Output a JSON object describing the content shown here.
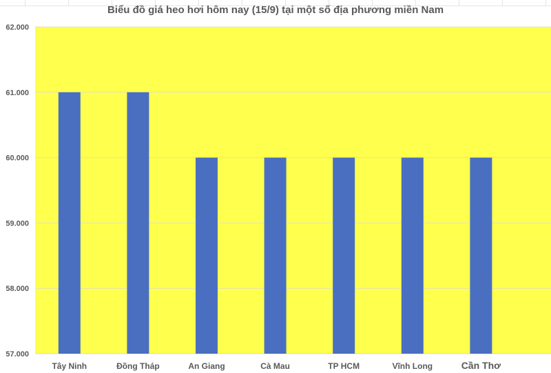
{
  "chart_data": {
    "type": "bar",
    "title": "Biểu đồ giá heo hơi hôm nay (15/9) tại một số địa phương miền Nam",
    "categories": [
      "Tây Ninh",
      "Đồng Tháp",
      "An Giang",
      "Cà Mau",
      "TP HCM",
      "Vĩnh Long",
      "Cần Thơ"
    ],
    "values": [
      61000,
      61000,
      60000,
      60000,
      60000,
      60000,
      60000
    ],
    "ylim": [
      57000,
      62000
    ],
    "yticks": [
      57000,
      58000,
      59000,
      60000,
      61000,
      62000
    ],
    "ytick_labels": [
      "57.000",
      "58.000",
      "59.000",
      "60.000",
      "61.000",
      "62.000"
    ],
    "xlabel": "",
    "ylabel": "",
    "grid": true,
    "colors": {
      "bar": "#4A6FC1",
      "plot_background": "#FFFF4D",
      "gridline": "#E0E0C0",
      "text": "#595959"
    }
  }
}
